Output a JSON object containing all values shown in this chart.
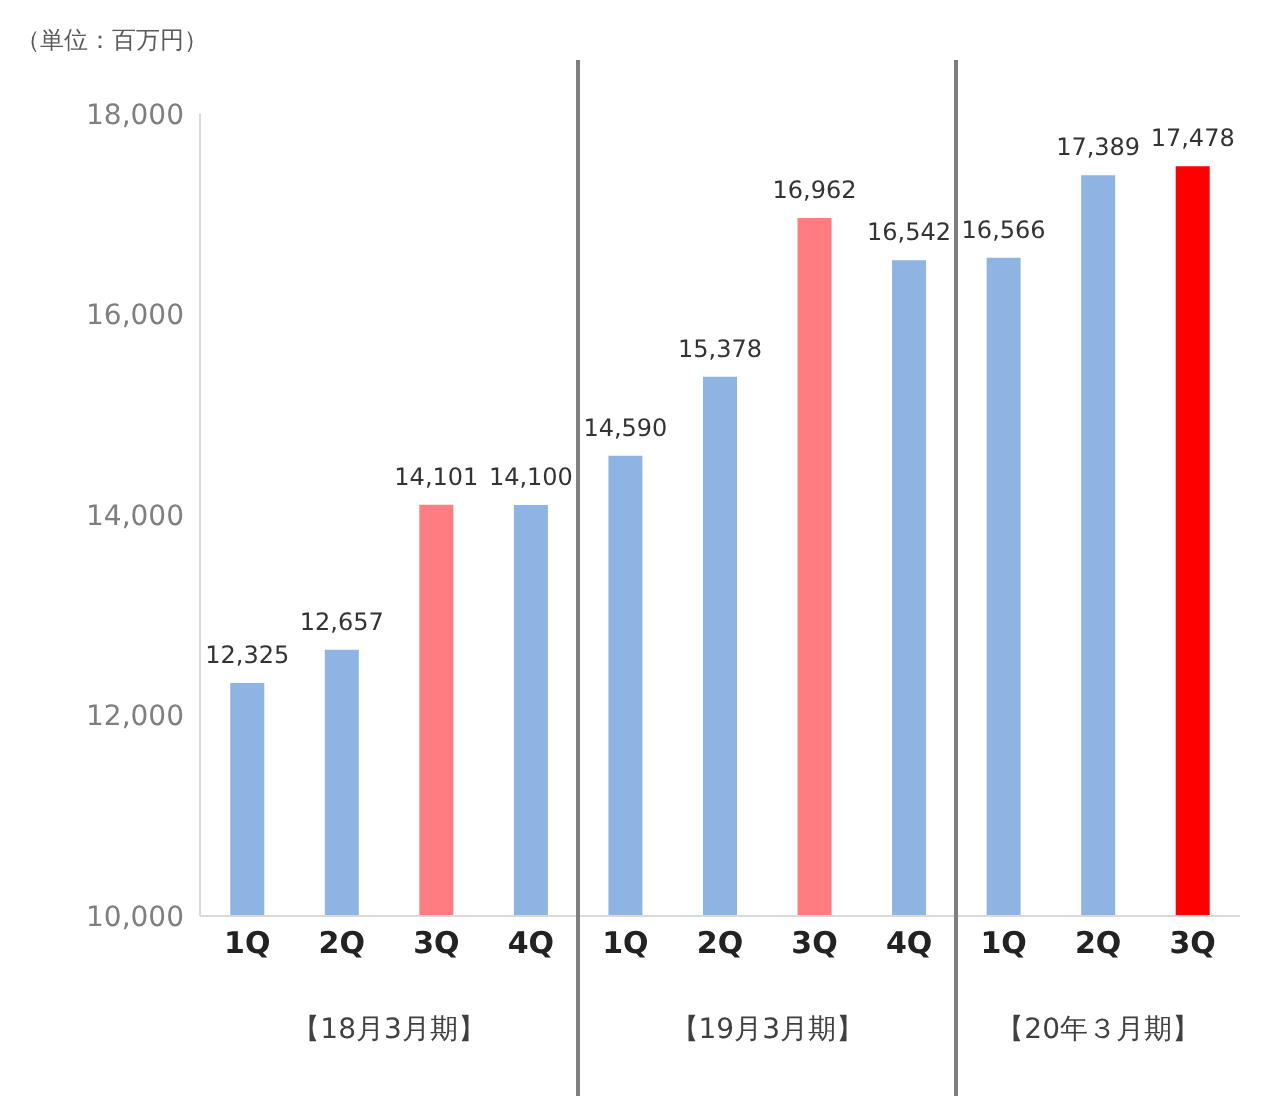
{
  "chart_data": {
    "type": "bar",
    "ylabel": "（単位：百万円）",
    "categories": [
      "1Q",
      "2Q",
      "3Q",
      "4Q",
      "1Q",
      "2Q",
      "3Q",
      "4Q",
      "1Q",
      "2Q",
      "3Q"
    ],
    "values": [
      12325,
      12657,
      14101,
      14100,
      14590,
      15378,
      16962,
      16542,
      16566,
      17389,
      17478
    ],
    "colors": [
      "#8db4e2",
      "#8db4e2",
      "#ff7c80",
      "#8db4e2",
      "#8db4e2",
      "#8db4e2",
      "#ff7c80",
      "#8db4e2",
      "#8db4e2",
      "#8db4e2",
      "#ff0000"
    ],
    "ylim": [
      10000,
      18000
    ],
    "yticks": [
      {
        "value": 10000,
        "label": "10,000"
      },
      {
        "value": 12000,
        "label": "12,000"
      },
      {
        "value": 14000,
        "label": "14,000"
      },
      {
        "value": 16000,
        "label": "16,000"
      },
      {
        "value": 18000,
        "label": "18,000"
      }
    ],
    "grid": false,
    "value_labels": [
      "12,325",
      "12,657",
      "14,101",
      "14,100",
      "14,590",
      "15,378",
      "16,962",
      "16,542",
      "16,566",
      "17,389",
      "17,478"
    ],
    "annotations": [
      "【18月3月期】",
      "【19月3月期】",
      "【20年３月期】"
    ]
  }
}
